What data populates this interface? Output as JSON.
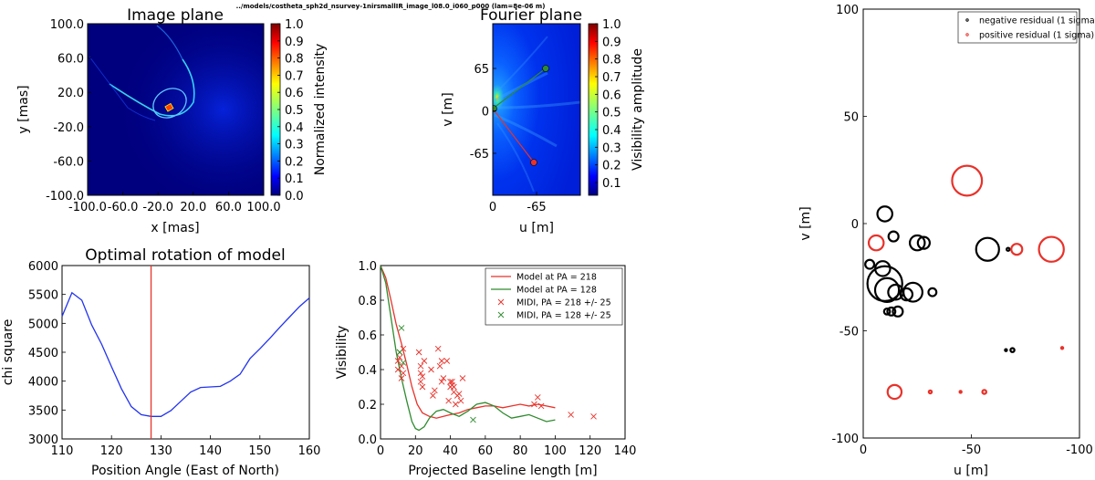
{
  "figure": {
    "suptitle": "../models/costheta_sph2d_nsurvey-1nirsmallIR_image_l08.0_i060_p000 (lam=8e-06 m)",
    "colors": {
      "red": "#e8322a",
      "green": "#2f8b2f",
      "blue": "#2233ee"
    }
  },
  "chart_data": [
    {
      "type": "heatmap",
      "title": "Image plane",
      "xlabel": "x [mas]",
      "ylabel": "y [mas]",
      "xticks": [
        "-100.0",
        "-60.0",
        "-20.0",
        "20.0",
        "60.0",
        "100.0"
      ],
      "yticks": [
        "100.0",
        "60.0",
        "20.0",
        "-20.0",
        "-60.0",
        "-100.0"
      ],
      "xlim": [
        -100,
        100
      ],
      "ylim": [
        -100,
        100
      ],
      "colorbar": {
        "label": "Normalized intensity",
        "ticks": [
          "1.0",
          "0.9",
          "0.8",
          "0.7",
          "0.6",
          "0.5",
          "0.4",
          "0.3",
          "0.2",
          "0.1",
          "0.0"
        ],
        "range": [
          0,
          1
        ]
      }
    },
    {
      "type": "heatmap",
      "title": "Fourier plane",
      "xlabel": "u [m]",
      "ylabel": "v [m]",
      "xticks": [
        "0",
        "-65"
      ],
      "yticks": [
        "65",
        "0",
        "-65"
      ],
      "baselines": [
        {
          "name": "green",
          "color": "#2f8b2f",
          "u": -65,
          "v": 60
        },
        {
          "name": "red",
          "color": "#e8322a",
          "u": -55,
          "v": -78
        }
      ],
      "colorbar": {
        "label": "Visibility amplitude",
        "ticks": [
          "1.0",
          "0.9",
          "0.8",
          "0.7",
          "0.6",
          "0.5",
          "0.4",
          "0.3",
          "0.2",
          "0.1"
        ],
        "range": [
          0.05,
          1
        ]
      }
    },
    {
      "type": "line",
      "title": "Optimal rotation of model",
      "xlabel": "Position Angle (East of North)",
      "ylabel": "chi square",
      "xlim": [
        110,
        160
      ],
      "ylim": [
        3000,
        6000
      ],
      "xticks": [
        "110",
        "120",
        "130",
        "140",
        "150",
        "160"
      ],
      "yticks": [
        "6000",
        "5500",
        "5000",
        "4500",
        "4000",
        "3500",
        "3000"
      ],
      "vline": 128,
      "series": [
        {
          "color": "#2233ee",
          "x": [
            110,
            112,
            114,
            116,
            118,
            120,
            122,
            124,
            126,
            128,
            130,
            132,
            134,
            136,
            138,
            140,
            142,
            144,
            146,
            148,
            150,
            152,
            154,
            156,
            158,
            160
          ],
          "y": [
            5120,
            5530,
            5400,
            4970,
            4640,
            4250,
            3870,
            3560,
            3420,
            3390,
            3390,
            3490,
            3650,
            3810,
            3890,
            3900,
            3910,
            4000,
            4120,
            4390,
            4560,
            4740,
            4930,
            5110,
            5290,
            5440
          ]
        }
      ]
    },
    {
      "type": "line",
      "xlabel": "Projected Baseline length [m]",
      "ylabel": "Visibility",
      "xlim": [
        0,
        140
      ],
      "ylim": [
        0,
        1
      ],
      "xticks": [
        "0",
        "20",
        "40",
        "60",
        "80",
        "100",
        "120",
        "140"
      ],
      "yticks": [
        "1.0",
        "0.8",
        "0.6",
        "0.4",
        "0.2",
        "0.0"
      ],
      "series": [
        {
          "name": "Model at PA = 218",
          "color": "#e8322a",
          "x": [
            0,
            3,
            6,
            9,
            12,
            15,
            18,
            21,
            24,
            28,
            32,
            36,
            40,
            45,
            50,
            55,
            60,
            65,
            70,
            75,
            80,
            85,
            90,
            95,
            100
          ],
          "y": [
            1.0,
            0.93,
            0.8,
            0.66,
            0.55,
            0.43,
            0.3,
            0.2,
            0.15,
            0.13,
            0.12,
            0.13,
            0.14,
            0.15,
            0.17,
            0.18,
            0.19,
            0.19,
            0.18,
            0.19,
            0.2,
            0.19,
            0.2,
            0.19,
            0.18
          ]
        },
        {
          "name": "Model at PA = 128",
          "color": "#2f8b2f",
          "x": [
            0,
            3,
            6,
            9,
            12,
            15,
            18,
            20,
            22,
            25,
            28,
            32,
            36,
            40,
            45,
            50,
            55,
            60,
            65,
            70,
            75,
            80,
            85,
            90,
            95,
            100
          ],
          "y": [
            1.0,
            0.9,
            0.7,
            0.5,
            0.35,
            0.22,
            0.1,
            0.06,
            0.05,
            0.07,
            0.12,
            0.16,
            0.17,
            0.15,
            0.13,
            0.16,
            0.2,
            0.21,
            0.19,
            0.15,
            0.12,
            0.13,
            0.14,
            0.12,
            0.1,
            0.11
          ]
        },
        {
          "name": "MIDI, PA = 218 +/- 25",
          "color": "#e8322a",
          "marker": "x",
          "x": [
            10,
            10,
            11,
            11,
            12,
            12,
            13,
            13,
            22,
            23,
            23,
            23,
            24,
            24,
            25,
            29,
            30,
            31,
            33,
            34,
            35,
            35,
            36,
            38,
            39,
            40,
            40,
            41,
            41,
            42,
            42,
            43,
            44,
            45,
            46,
            47,
            88,
            90,
            92,
            109,
            122
          ],
          "y": [
            0.4,
            0.45,
            0.47,
            0.5,
            0.42,
            0.35,
            0.52,
            0.38,
            0.5,
            0.42,
            0.38,
            0.33,
            0.36,
            0.3,
            0.45,
            0.4,
            0.25,
            0.28,
            0.52,
            0.42,
            0.45,
            0.33,
            0.35,
            0.45,
            0.22,
            0.33,
            0.3,
            0.33,
            0.31,
            0.3,
            0.27,
            0.2,
            0.25,
            0.26,
            0.22,
            0.35,
            0.2,
            0.24,
            0.19,
            0.14,
            0.13
          ]
        },
        {
          "name": "MIDI, PA = 128 +/- 25",
          "color": "#2f8b2f",
          "marker": "x",
          "x": [
            11,
            12,
            13,
            53
          ],
          "y": [
            0.5,
            0.64,
            0.44,
            0.11
          ]
        }
      ]
    },
    {
      "type": "scatter",
      "xlabel": "u [m]",
      "ylabel": "v [m]",
      "xlim": [
        0,
        -100
      ],
      "ylim": [
        -100,
        100
      ],
      "xticks": [
        "0",
        "-50",
        "-100"
      ],
      "yticks": [
        "100",
        "50",
        "0",
        "-50",
        "-100"
      ],
      "series": [
        {
          "name": "negative residual (1 sigma)",
          "color": "#000000",
          "points": [
            {
              "u": -10,
              "v": 4.5,
              "r": 1.5
            },
            {
              "u": -14,
              "v": -6,
              "r": 1.0
            },
            {
              "u": -25,
              "v": -9,
              "r": 1.5
            },
            {
              "u": -28,
              "v": -9,
              "r": 1.2
            },
            {
              "u": -57.5,
              "v": -12,
              "r": 2.3
            },
            {
              "u": -67,
              "v": -12,
              "r": 0.3
            },
            {
              "u": -3,
              "v": -19,
              "r": 0.9
            },
            {
              "u": -9,
              "v": -21,
              "r": 1.5
            },
            {
              "u": -10,
              "v": -28,
              "r": 3.5
            },
            {
              "u": -11,
              "v": -31,
              "r": 2.4
            },
            {
              "u": -15,
              "v": -32,
              "r": 1.5
            },
            {
              "u": -23,
              "v": -32,
              "r": 1.9
            },
            {
              "u": -20,
              "v": -33,
              "r": 1.2
            },
            {
              "u": -32,
              "v": -32,
              "r": 0.8
            },
            {
              "u": -11,
              "v": -41,
              "r": 0.6
            },
            {
              "u": -13,
              "v": -41,
              "r": 0.8
            },
            {
              "u": -16,
              "v": -41,
              "r": 1.0
            },
            {
              "u": -66,
              "v": -59,
              "r": 0.2
            },
            {
              "u": -69,
              "v": -59,
              "r": 0.4
            }
          ]
        },
        {
          "name": "positive residual (1 sigma)",
          "color": "#e8322a",
          "points": [
            {
              "u": -48,
              "v": 20,
              "r": 3.0
            },
            {
              "u": -6,
              "v": -9,
              "r": 1.5
            },
            {
              "u": -71,
              "v": -12,
              "r": 1.1
            },
            {
              "u": -87,
              "v": -12,
              "r": 2.5
            },
            {
              "u": -92,
              "v": -58,
              "r": 0.2
            },
            {
              "u": -14.5,
              "v": -78.5,
              "r": 1.4
            },
            {
              "u": -31,
              "v": -78.5,
              "r": 0.3
            },
            {
              "u": -45,
              "v": -78.5,
              "r": 0.2
            },
            {
              "u": -56,
              "v": -78.5,
              "r": 0.4
            }
          ]
        }
      ]
    }
  ]
}
